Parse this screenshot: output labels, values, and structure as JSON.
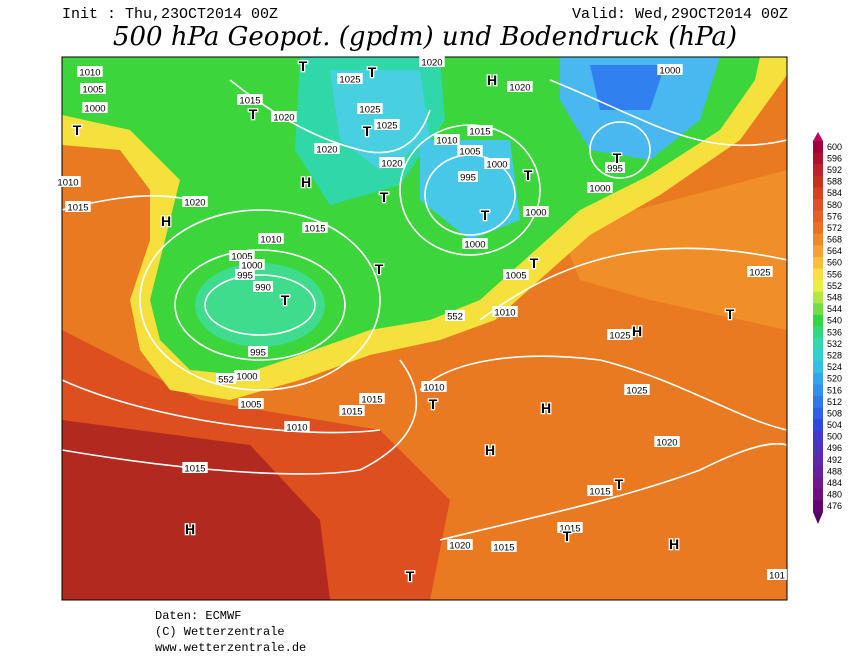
{
  "header": {
    "init": "Init : Thu,23OCT2014 00Z",
    "valid": "Valid: Wed,29OCT2014 00Z",
    "title": "500 hPa Geopot. (gpdm) und Bodendruck (hPa)"
  },
  "colorbar": {
    "levels": [
      600,
      596,
      592,
      588,
      584,
      580,
      576,
      572,
      568,
      564,
      560,
      556,
      552,
      548,
      544,
      540,
      536,
      532,
      528,
      524,
      520,
      516,
      512,
      508,
      504,
      500,
      496,
      492,
      488,
      484,
      480,
      476
    ],
    "colors": [
      "#a0003c",
      "#b01030",
      "#c0202a",
      "#c83020",
      "#d84020",
      "#e05020",
      "#e86020",
      "#f07020",
      "#f08828",
      "#f8a030",
      "#f8c038",
      "#f8e040",
      "#e8f040",
      "#b0e840",
      "#70e040",
      "#30d840",
      "#30d880",
      "#30d8b0",
      "#30d0d0",
      "#30c0e8",
      "#30a8f0",
      "#3090f0",
      "#3078f0",
      "#3060e8",
      "#3048e0",
      "#4038d0",
      "#5030c0",
      "#6028b0",
      "#6820a0",
      "#701890",
      "#701080",
      "#600870"
    ]
  },
  "map_labels": {
    "isobars": [
      "1010",
      "1005",
      "1000",
      "1015",
      "1020",
      "1025",
      "1025",
      "1025",
      "1020",
      "1020",
      "1020",
      "1020",
      "1015",
      "1010",
      "1005",
      "1000",
      "995",
      "1000",
      "995",
      "1000",
      "1000",
      "1000",
      "1005",
      "1010",
      "1015",
      "1010",
      "1005",
      "1000",
      "995",
      "990",
      "995",
      "1000",
      "1005",
      "1010",
      "1015",
      "1015",
      "1010",
      "1015",
      "1020",
      "1015",
      "1010",
      "1025",
      "1025",
      "1025",
      "1020",
      "1015",
      "1015",
      "1020",
      "1015",
      "101",
      "552",
      "552"
    ],
    "centers": [
      "T",
      "T",
      "H",
      "T",
      "T",
      "H",
      "T",
      "T",
      "T",
      "T",
      "T",
      "H",
      "T",
      "T",
      "T",
      "H",
      "T",
      "T",
      "H",
      "H",
      "T",
      "H",
      "T",
      "H",
      "T"
    ]
  },
  "footer": [
    "Daten: ECMWF",
    "(C) Wetterzentrale",
    "www.wetterzentrale.de"
  ]
}
